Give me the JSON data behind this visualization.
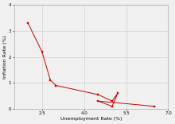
{
  "x": [
    2.0,
    2.5,
    2.8,
    3.0,
    4.5,
    5.0,
    5.2,
    5.0,
    4.5,
    6.5
  ],
  "y": [
    3.3,
    2.2,
    1.1,
    0.9,
    0.55,
    0.3,
    0.6,
    0.1,
    0.3,
    0.1
  ],
  "line_color": "#cc0000",
  "marker_color": "#cc0000",
  "marker_size": 1.8,
  "line_width": 0.7,
  "xlabel": "Unemployment Rate (%)",
  "ylabel": "Inflation Rate (%)",
  "xlim": [
    1.5,
    7.0
  ],
  "ylim": [
    0.0,
    4.0
  ],
  "xticks": [
    2.5,
    4.0,
    5.5,
    7.0
  ],
  "yticks": [
    0,
    1,
    2,
    3,
    4
  ],
  "grid_color": "#cccccc",
  "background_color": "#f0f0f0",
  "label_fontsize": 4.5,
  "tick_fontsize": 4.0
}
